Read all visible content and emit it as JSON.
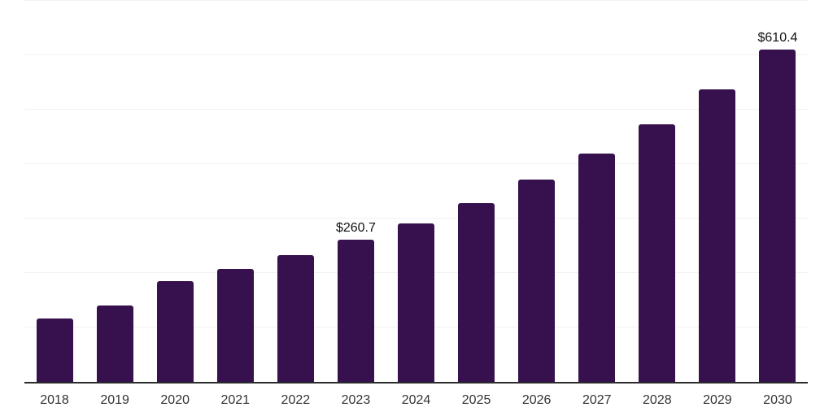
{
  "chart_data": {
    "type": "bar",
    "title": "",
    "xlabel": "",
    "ylabel": "",
    "categories": [
      "2018",
      "2019",
      "2020",
      "2021",
      "2022",
      "2023",
      "2024",
      "2025",
      "2026",
      "2027",
      "2028",
      "2029",
      "2030"
    ],
    "values": [
      116,
      141,
      185,
      208,
      233,
      260.7,
      291,
      329,
      372,
      420,
      474,
      538,
      610.4
    ],
    "point_labels": [
      "",
      "",
      "",
      "",
      "",
      "$260.7",
      "",
      "",
      "",
      "",
      "",
      "",
      "$610.4"
    ],
    "ylim": [
      0,
      702
    ],
    "gridline_values": [
      100,
      200,
      300,
      400,
      500,
      600,
      700
    ],
    "grid": "horizontal",
    "legend": "none",
    "colors": {
      "bar": "#36114D",
      "axis_line": "#2b2b2b",
      "gridline": "#f1f1f1",
      "tick_label": "#333333",
      "value_label": "#111111",
      "background": "#ffffff"
    }
  }
}
